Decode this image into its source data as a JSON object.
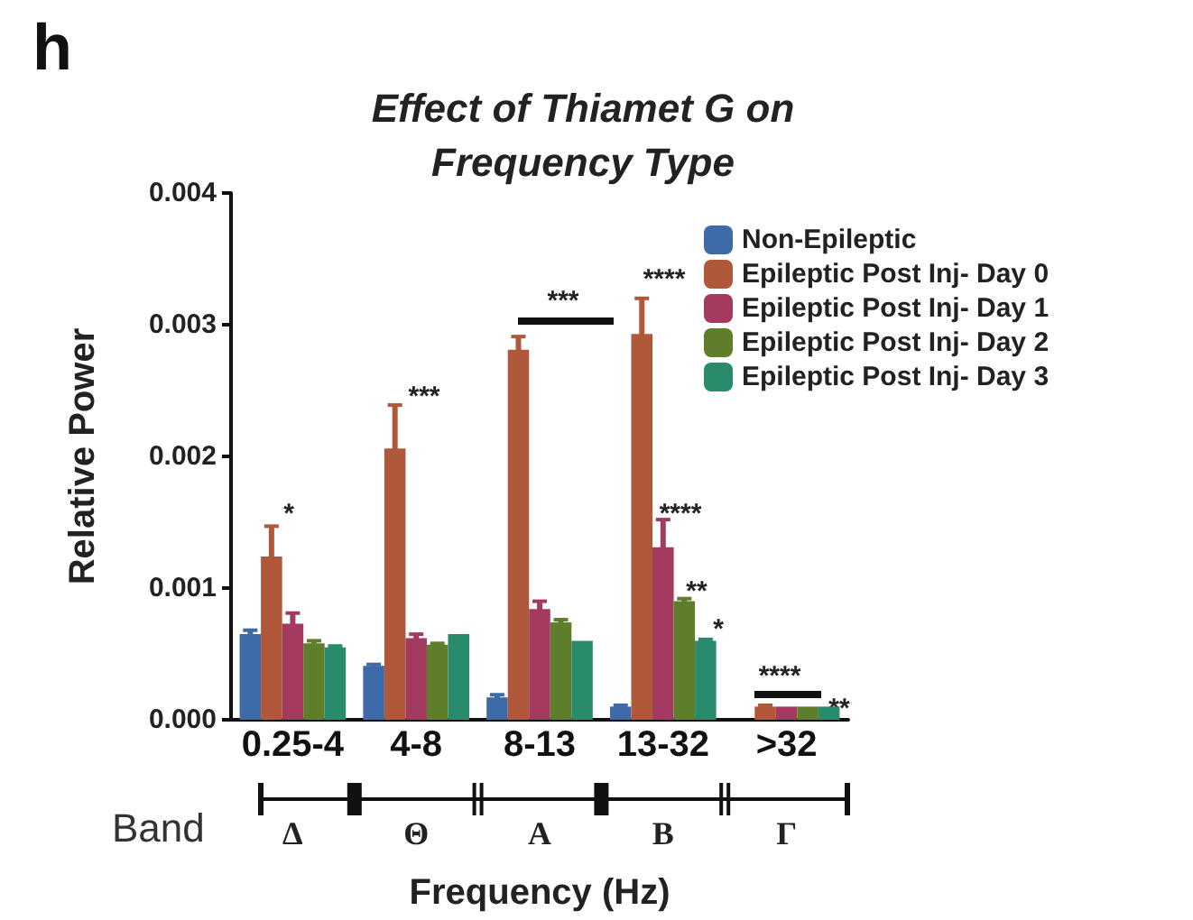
{
  "chart_data": {
    "type": "bar",
    "title": "Effect of Thiamet G on\nFrequency Type",
    "xlabel": "Frequency (Hz)",
    "ylabel": "Relative Power",
    "categories": [
      "0.25-4",
      "4-8",
      "8-13",
      "13-32",
      ">32"
    ],
    "series": [
      {
        "name": "Non-Epileptic",
        "color": "#3f6aa8",
        "values": [
          0.00065,
          0.00041,
          0.00017,
          0.0001,
          0
        ],
        "errors": [
          3e-05,
          1e-05,
          2e-05,
          1e-05,
          null
        ]
      },
      {
        "name": "Epileptic Post Inj- Day 0",
        "color": "#b0583a",
        "values": [
          0.00124,
          0.00206,
          0.00281,
          0.00293,
          0.0001
        ],
        "errors": [
          0.00023,
          0.00033,
          0.0001,
          0.00027,
          1e-05
        ]
      },
      {
        "name": "Epileptic Post Inj- Day 1",
        "color": "#a33a5f",
        "values": [
          0.00073,
          0.00062,
          0.00084,
          0.00131,
          0.0001
        ],
        "errors": [
          8e-05,
          3e-05,
          6e-05,
          0.00021,
          null
        ]
      },
      {
        "name": "Epileptic Post Inj- Day 2",
        "color": "#5e7e2c",
        "values": [
          0.00058,
          0.00057,
          0.00074,
          0.0009,
          0.0001
        ],
        "errors": [
          2e-05,
          1e-05,
          2e-05,
          2e-05,
          null
        ]
      },
      {
        "name": "Epileptic Post Inj- Day 3",
        "color": "#2a8a6c",
        "values": [
          0.00055,
          0.00065,
          0.0006,
          0.0006,
          0.0001
        ],
        "errors": [
          1e-05,
          null,
          null,
          1e-05,
          null
        ]
      }
    ],
    "ylim": [
      0,
      0.004
    ],
    "yticks": [
      {
        "value": 0,
        "label": "0.000"
      },
      {
        "value": 0.001,
        "label": "0.001"
      },
      {
        "value": 0.002,
        "label": "0.002"
      },
      {
        "value": 0.003,
        "label": "0.003"
      },
      {
        "value": 0.004,
        "label": "0.004"
      }
    ],
    "grid": false,
    "legend": "top right",
    "annotations": [
      "h",
      "Band",
      "*",
      "***",
      "***",
      "****",
      "****",
      "**",
      "*",
      "****",
      "**",
      "Δ",
      "Θ",
      "Α",
      "Β",
      "Γ"
    ]
  }
}
